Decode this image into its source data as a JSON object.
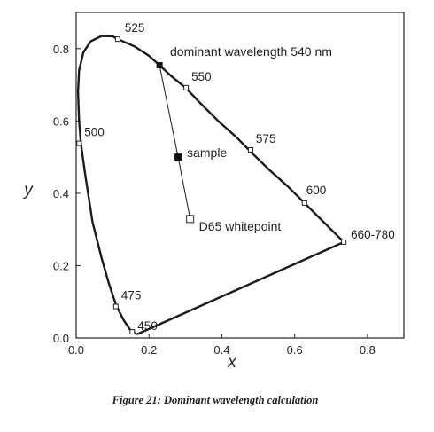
{
  "chart_data": {
    "type": "line",
    "xlabel": "x",
    "ylabel": "y",
    "xlim": [
      0,
      0.9
    ],
    "ylim": [
      0,
      0.9
    ],
    "x_ticks": [
      "0.0",
      "0.2",
      "0.4",
      "0.6",
      "0.8"
    ],
    "y_ticks": [
      "0.0",
      "0.2",
      "0.4",
      "0.6",
      "0.8"
    ],
    "grid": false,
    "series": [
      {
        "role": "spectral locus",
        "x": [
          0.167,
          0.15,
          0.13,
          0.11,
          0.09,
          0.07,
          0.045,
          0.025,
          0.013,
          0.008,
          0.005,
          0.008,
          0.02,
          0.04,
          0.07,
          0.1,
          0.115,
          0.16,
          0.2,
          0.229,
          0.26,
          0.302,
          0.34,
          0.39,
          0.44,
          0.482,
          0.53,
          0.58,
          0.63,
          0.735
        ],
        "y": [
          0.01,
          0.02,
          0.05,
          0.09,
          0.15,
          0.22,
          0.32,
          0.45,
          0.538,
          0.6,
          0.68,
          0.74,
          0.79,
          0.82,
          0.835,
          0.834,
          0.826,
          0.806,
          0.78,
          0.754,
          0.725,
          0.69,
          0.65,
          0.6,
          0.555,
          0.512,
          0.465,
          0.42,
          0.37,
          0.265
        ]
      },
      {
        "role": "line of purples",
        "x": [
          0.735,
          0.167
        ],
        "y": [
          0.265,
          0.01
        ]
      },
      {
        "role": "dominant wavelength construction",
        "x": [
          0.229,
          0.28,
          0.313
        ],
        "y": [
          0.754,
          0.5,
          0.329
        ]
      }
    ],
    "wavelength_markers": [
      {
        "label": "450",
        "x": 0.154,
        "y": 0.017
      },
      {
        "label": "475",
        "x": 0.109,
        "y": 0.087
      },
      {
        "label": "500",
        "x": 0.008,
        "y": 0.538
      },
      {
        "label": "525",
        "x": 0.114,
        "y": 0.826
      },
      {
        "label": "550",
        "x": 0.302,
        "y": 0.692
      },
      {
        "label": "575",
        "x": 0.479,
        "y": 0.52
      },
      {
        "label": "600",
        "x": 0.627,
        "y": 0.373
      },
      {
        "label": "660-780",
        "x": 0.735,
        "y": 0.265
      }
    ],
    "points": [
      {
        "label": "sample",
        "x": 0.28,
        "y": 0.5,
        "marker": "filled-square"
      },
      {
        "label": "D65 whitepoint",
        "x": 0.313,
        "y": 0.329,
        "marker": "open-square"
      }
    ],
    "annotations": [
      "dominant wavelength 540 nm"
    ],
    "caption": "Figure 21:  Dominant wavelength calculation"
  }
}
